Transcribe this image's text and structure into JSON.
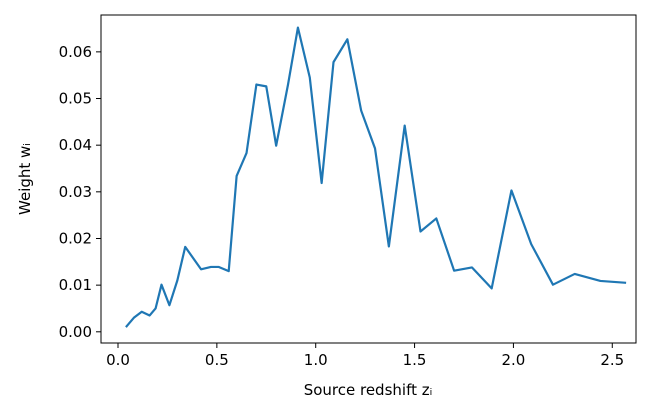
{
  "chart_data": {
    "type": "line",
    "xlabel": "Source redshift zᵢ",
    "ylabel": "Weight wᵢ",
    "x": [
      0.04,
      0.08,
      0.12,
      0.16,
      0.19,
      0.22,
      0.26,
      0.3,
      0.34,
      0.42,
      0.47,
      0.51,
      0.56,
      0.6,
      0.65,
      0.7,
      0.75,
      0.8,
      0.86,
      0.91,
      0.97,
      1.03,
      1.09,
      1.16,
      1.23,
      1.3,
      1.37,
      1.45,
      1.53,
      1.61,
      1.7,
      1.79,
      1.89,
      1.99,
      2.09,
      2.2,
      2.31,
      2.44,
      2.57
    ],
    "values": [
      0.001,
      0.003,
      0.0043,
      0.0035,
      0.005,
      0.0101,
      0.0057,
      0.011,
      0.0182,
      0.0134,
      0.0139,
      0.0139,
      0.013,
      0.0334,
      0.0383,
      0.053,
      0.0526,
      0.0399,
      0.053,
      0.0652,
      0.0545,
      0.0319,
      0.0578,
      0.0627,
      0.0474,
      0.0393,
      0.0183,
      0.0442,
      0.0215,
      0.0243,
      0.0131,
      0.0138,
      0.0093,
      0.0303,
      0.0188,
      0.0101,
      0.0124,
      0.0109,
      0.0105
    ],
    "color": "#1f77b4",
    "xlim": [
      -0.086,
      2.62
    ],
    "ylim": [
      -0.0024,
      0.0679
    ],
    "xticks": [
      {
        "value": 0,
        "label": "0.0"
      },
      {
        "value": 0.5,
        "label": "0.5"
      },
      {
        "value": 1,
        "label": "1.0"
      },
      {
        "value": 1.5,
        "label": "1.5"
      },
      {
        "value": 2,
        "label": "2.0"
      },
      {
        "value": 2.5,
        "label": "2.5"
      }
    ],
    "yticks": [
      {
        "value": 0,
        "label": "0.00"
      },
      {
        "value": 0.01,
        "label": "0.01"
      },
      {
        "value": 0.02,
        "label": "0.02"
      },
      {
        "value": 0.03,
        "label": "0.03"
      },
      {
        "value": 0.04,
        "label": "0.04"
      },
      {
        "value": 0.05,
        "label": "0.05"
      },
      {
        "value": 0.06,
        "label": "0.06"
      }
    ]
  }
}
